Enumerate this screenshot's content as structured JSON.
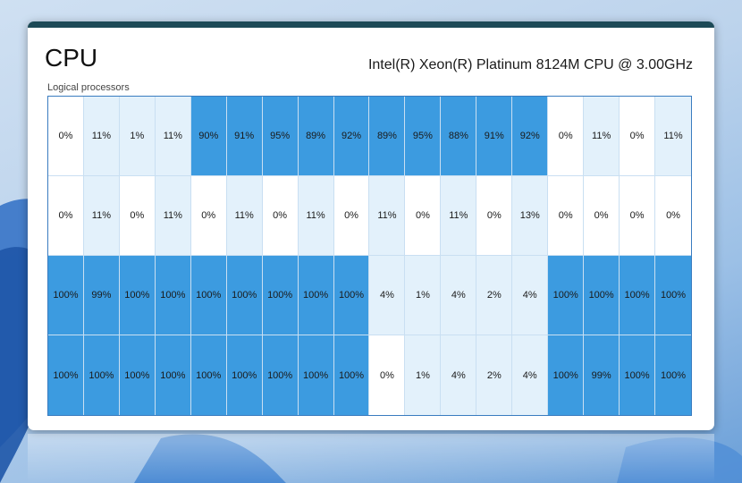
{
  "window": {
    "title": "CPU",
    "cpu_name": "Intel(R) Xeon(R) Platinum 8124M CPU @ 3.00GHz",
    "section_label": "Logical processors"
  },
  "colors": {
    "high": "#3c9be0",
    "low": "#e3f1fb",
    "zero": "#ffffff"
  },
  "processors": [
    [
      "0%",
      "11%",
      "1%",
      "11%",
      "90%",
      "91%",
      "95%",
      "89%",
      "92%",
      "89%",
      "95%",
      "88%",
      "91%",
      "92%",
      "0%",
      "11%",
      "0%",
      "11%"
    ],
    [
      "0%",
      "11%",
      "0%",
      "11%",
      "0%",
      "11%",
      "0%",
      "11%",
      "0%",
      "11%",
      "0%",
      "11%",
      "0%",
      "13%",
      "0%",
      "0%",
      "0%",
      "0%"
    ],
    [
      "100%",
      "99%",
      "100%",
      "100%",
      "100%",
      "100%",
      "100%",
      "100%",
      "100%",
      "4%",
      "1%",
      "4%",
      "2%",
      "4%",
      "100%",
      "100%",
      "100%",
      "100%"
    ],
    [
      "100%",
      "100%",
      "100%",
      "100%",
      "100%",
      "100%",
      "100%",
      "100%",
      "100%",
      "0%",
      "1%",
      "4%",
      "2%",
      "4%",
      "100%",
      "99%",
      "100%",
      "100%"
    ]
  ]
}
